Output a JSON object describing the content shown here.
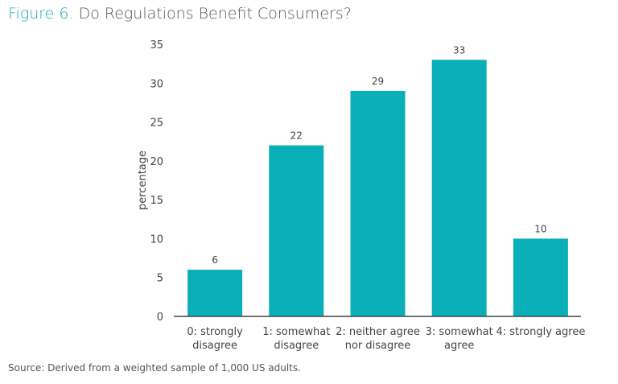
{
  "title": {
    "figure": "Figure 6.",
    "text": "Do Regulations Benefit Consumers?"
  },
  "source": "Source: Derived from a weighted sample of 1,000 US adults.",
  "colors": {
    "bar": "#0aafb8",
    "title_accent": "#17a9b3"
  },
  "chart_data": {
    "type": "bar",
    "categories": [
      [
        "0: strongly",
        "disagree"
      ],
      [
        "1: somewhat",
        "disagree"
      ],
      [
        "2: neither agree",
        "nor disagree"
      ],
      [
        "3: somewhat",
        "agree"
      ],
      [
        "4: strongly agree"
      ]
    ],
    "values": [
      6,
      22,
      29,
      33,
      10
    ],
    "data_labels": [
      "6",
      "22",
      "29",
      "33",
      "10"
    ],
    "xlabel": "",
    "ylabel": "percentage",
    "ylim": [
      0,
      35
    ],
    "yticks": [
      0,
      5,
      10,
      15,
      20,
      25,
      30,
      35
    ],
    "grid": false,
    "legend": "none"
  }
}
